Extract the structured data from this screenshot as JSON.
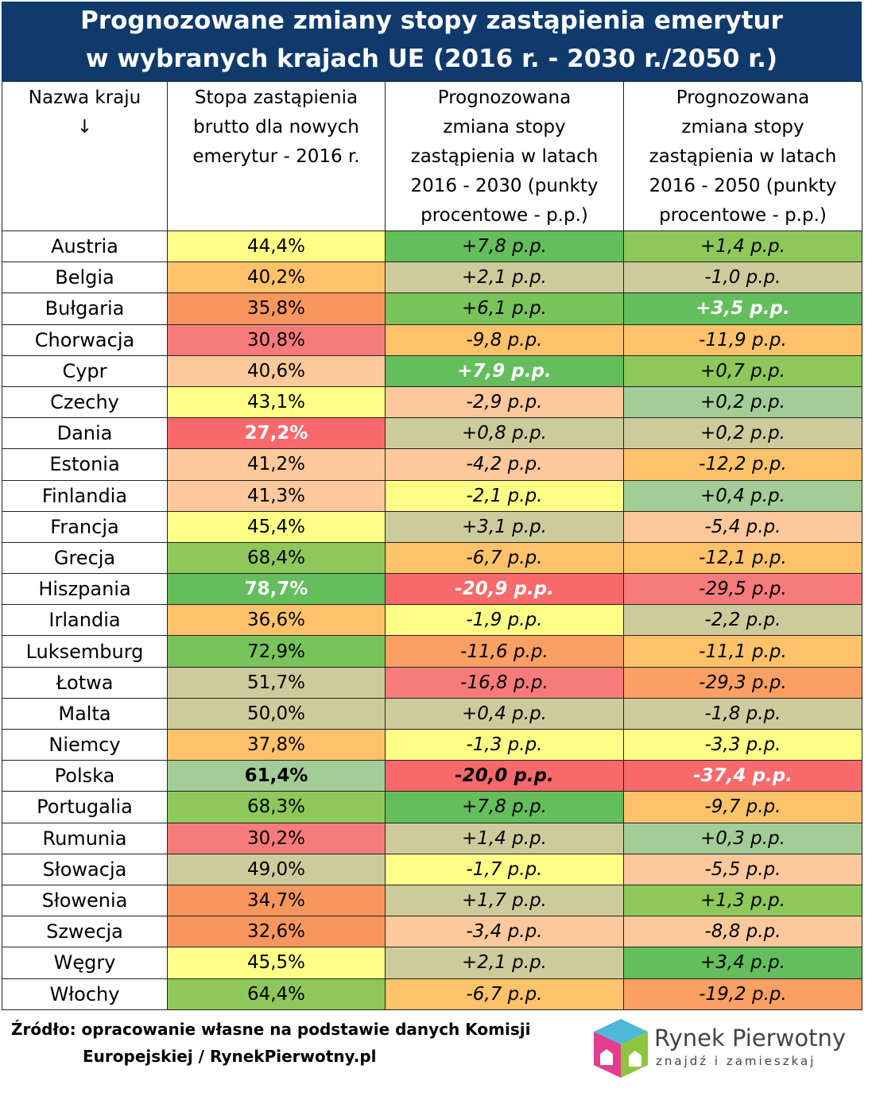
{
  "title": [
    "Prognozowane zmiany stopy zastąpienia emerytur",
    "w wybranych krajach UE (2016 r. - 2030 r./2050 r.)"
  ],
  "table": {
    "headers": [
      "Nazwa kraju\n↓",
      "Stopa zastąpienia\nbrutto dla nowych\nemerytur - 2016 r.",
      "Prognozowana\nzmiana stopy\nzastąpienia w latach\n2016 - 2030 (punkty\nprocentowe - p.p.)",
      "Prognozowana\nzmiana stopy\nzastąpienia w latach\n2016 - 2050 (punkty\nprocentowe - p.p.)"
    ],
    "rows": [
      {
        "country": "Austria",
        "cells": [
          {
            "text": "44,4%",
            "fill": "#ffff88"
          },
          {
            "text": "+7,8 p.p.",
            "fill": "#63be5b"
          },
          {
            "text": "+1,4 p.p.",
            "fill": "#8ec85b"
          }
        ]
      },
      {
        "country": "Belgia",
        "cells": [
          {
            "text": "40,2%",
            "fill": "#fdc26a"
          },
          {
            "text": "+2,1 p.p.",
            "fill": "#cdcb9c"
          },
          {
            "text": "-1,0 p.p.",
            "fill": "#cdcb9c"
          }
        ]
      },
      {
        "country": "Bułgaria",
        "cells": [
          {
            "text": "35,8%",
            "fill": "#f9965f"
          },
          {
            "text": "+6,1 p.p.",
            "fill": "#79c35b"
          },
          {
            "text": "+3,5 p.p.",
            "fill": "#63be5b",
            "bold": true,
            "ink": "#ffffff"
          }
        ]
      },
      {
        "country": "Chorwacja",
        "cells": [
          {
            "text": "30,8%",
            "fill": "#f87b7b"
          },
          {
            "text": "-9,8 p.p.",
            "fill": "#fdc26a"
          },
          {
            "text": "-11,9 p.p.",
            "fill": "#fdc26a"
          }
        ]
      },
      {
        "country": "Cypr",
        "cells": [
          {
            "text": "40,6%",
            "fill": "#fcc89c"
          },
          {
            "text": "+7,9 p.p.",
            "fill": "#63be5b",
            "bold": true,
            "ink": "#ffffff"
          },
          {
            "text": "+0,7 p.p.",
            "fill": "#8ec85b"
          }
        ]
      },
      {
        "country": "Czechy",
        "cells": [
          {
            "text": "43,1%",
            "fill": "#ffff88"
          },
          {
            "text": "-2,9 p.p.",
            "fill": "#fcc89c"
          },
          {
            "text": "+0,2 p.p.",
            "fill": "#a3cc96"
          }
        ]
      },
      {
        "country": "Dania",
        "cells": [
          {
            "text": "27,2%",
            "fill": "#f8696b",
            "bold": true,
            "ink": "#ffffff"
          },
          {
            "text": "+0,8 p.p.",
            "fill": "#cdcb9c"
          },
          {
            "text": "+0,2 p.p.",
            "fill": "#cdcb9c"
          }
        ]
      },
      {
        "country": "Estonia",
        "cells": [
          {
            "text": "41,2%",
            "fill": "#fcc89c"
          },
          {
            "text": "-4,2 p.p.",
            "fill": "#fcc89c"
          },
          {
            "text": "-12,2 p.p.",
            "fill": "#fdc26a"
          }
        ]
      },
      {
        "country": "Finlandia",
        "cells": [
          {
            "text": "41,3%",
            "fill": "#fcc89c"
          },
          {
            "text": "-2,1 p.p.",
            "fill": "#ffff88"
          },
          {
            "text": "+0,4 p.p.",
            "fill": "#a3cc96"
          }
        ]
      },
      {
        "country": "Francja",
        "cells": [
          {
            "text": "45,4%",
            "fill": "#ffff88"
          },
          {
            "text": "+3,1 p.p.",
            "fill": "#cdcb9c"
          },
          {
            "text": "-5,4 p.p.",
            "fill": "#fcc89c"
          }
        ]
      },
      {
        "country": "Grecja",
        "cells": [
          {
            "text": "68,4%",
            "fill": "#8ec85b"
          },
          {
            "text": "-6,7 p.p.",
            "fill": "#fdc26a"
          },
          {
            "text": "-12,1 p.p.",
            "fill": "#fdc26a"
          }
        ]
      },
      {
        "country": "Hiszpania",
        "cells": [
          {
            "text": "78,7%",
            "fill": "#63be5b",
            "bold": true,
            "ink": "#ffffff"
          },
          {
            "text": "-20,9 p.p.",
            "fill": "#f8696b",
            "bold": true,
            "ink": "#ffffff"
          },
          {
            "text": "-29,5 p.p.",
            "fill": "#f87b7b"
          }
        ]
      },
      {
        "country": "Irlandia",
        "cells": [
          {
            "text": "36,6%",
            "fill": "#fdc26a"
          },
          {
            "text": "-1,9 p.p.",
            "fill": "#ffff88"
          },
          {
            "text": "-2,2 p.p.",
            "fill": "#cdcb9c"
          }
        ]
      },
      {
        "country": "Luksemburg",
        "cells": [
          {
            "text": "72,9%",
            "fill": "#79c35b"
          },
          {
            "text": "-11,6 p.p.",
            "fill": "#fba064"
          },
          {
            "text": "-11,1 p.p.",
            "fill": "#fdc26a"
          }
        ]
      },
      {
        "country": "Łotwa",
        "cells": [
          {
            "text": "51,7%",
            "fill": "#cdcb9c"
          },
          {
            "text": "-16,8 p.p.",
            "fill": "#f87b7b"
          },
          {
            "text": "-29,3 p.p.",
            "fill": "#fba064"
          }
        ]
      },
      {
        "country": "Malta",
        "cells": [
          {
            "text": "50,0%",
            "fill": "#cdcb9c"
          },
          {
            "text": "+0,4 p.p.",
            "fill": "#cdcb9c"
          },
          {
            "text": "-1,8 p.p.",
            "fill": "#cdcb9c"
          }
        ]
      },
      {
        "country": "Niemcy",
        "cells": [
          {
            "text": "37,8%",
            "fill": "#fdc26a"
          },
          {
            "text": "-1,3 p.p.",
            "fill": "#ffff88"
          },
          {
            "text": "-3,3 p.p.",
            "fill": "#ffff88"
          }
        ]
      },
      {
        "country": "Polska",
        "cells": [
          {
            "text": "61,4%",
            "fill": "#a3cc96",
            "bold": true,
            "ink": "#000000"
          },
          {
            "text": "-20,0 p.p.",
            "fill": "#f8696b",
            "bold": true,
            "ink": "#000000"
          },
          {
            "text": "-37,4 p.p.",
            "fill": "#f8696b",
            "bold": true,
            "ink": "#ffffff"
          }
        ]
      },
      {
        "country": "Portugalia",
        "cells": [
          {
            "text": "68,3%",
            "fill": "#8ec85b"
          },
          {
            "text": "+7,8 p.p.",
            "fill": "#63be5b"
          },
          {
            "text": "-9,7 p.p.",
            "fill": "#fdc26a"
          }
        ]
      },
      {
        "country": "Rumunia",
        "cells": [
          {
            "text": "30,2%",
            "fill": "#f87b7b"
          },
          {
            "text": "+1,4 p.p.",
            "fill": "#cdcb9c"
          },
          {
            "text": "+0,3 p.p.",
            "fill": "#a3cc96"
          }
        ]
      },
      {
        "country": "Słowacja",
        "cells": [
          {
            "text": "49,0%",
            "fill": "#cdcb9c"
          },
          {
            "text": "-1,7 p.p.",
            "fill": "#ffff88"
          },
          {
            "text": "-5,5 p.p.",
            "fill": "#fcc89c"
          }
        ]
      },
      {
        "country": "Słowenia",
        "cells": [
          {
            "text": "34,7%",
            "fill": "#f9965f"
          },
          {
            "text": "+1,7 p.p.",
            "fill": "#cdcb9c"
          },
          {
            "text": "+1,3 p.p.",
            "fill": "#8ec85b"
          }
        ]
      },
      {
        "country": "Szwecja",
        "cells": [
          {
            "text": "32,6%",
            "fill": "#f9965f"
          },
          {
            "text": "-3,4 p.p.",
            "fill": "#fcc89c"
          },
          {
            "text": "-8,8 p.p.",
            "fill": "#fcc89c"
          }
        ]
      },
      {
        "country": "Węgry",
        "cells": [
          {
            "text": "45,5%",
            "fill": "#ffff88"
          },
          {
            "text": "+2,1 p.p.",
            "fill": "#cdcb9c"
          },
          {
            "text": "+3,4 p.p.",
            "fill": "#63be5b"
          }
        ]
      },
      {
        "country": "Włochy",
        "cells": [
          {
            "text": "64,4%",
            "fill": "#8ec85b"
          },
          {
            "text": "-6,7 p.p.",
            "fill": "#fdc26a"
          },
          {
            "text": "-19,2 p.p.",
            "fill": "#fba064"
          }
        ]
      }
    ]
  },
  "source": [
    "Źródło: opracowanie własne na podstawie danych Komisji",
    "Europejskiej / RynekPierwotny.pl"
  ],
  "logo": {
    "name": "Rynek Pierwotny",
    "tagline": "znajdź i zamieszkaj"
  }
}
